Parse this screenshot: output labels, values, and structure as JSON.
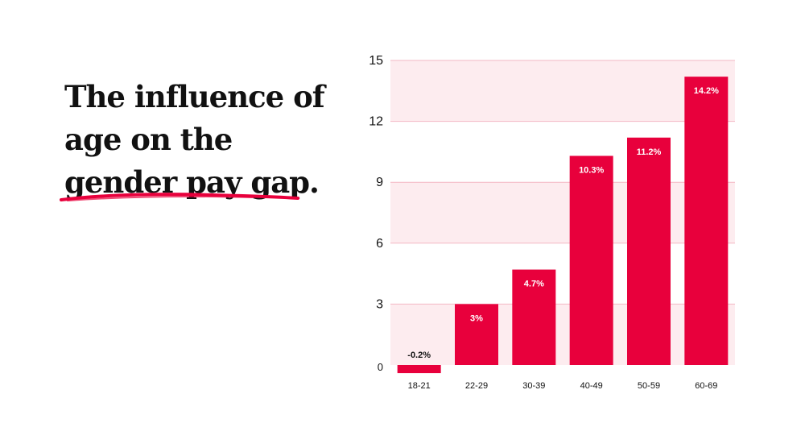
{
  "title": {
    "line1": "The influence of",
    "line2": "age on the",
    "line3": "gender pay gap."
  },
  "colors": {
    "bar": "#e8003c",
    "band": "#fdecef",
    "grid": "#f3b7c4",
    "text": "#111111"
  },
  "chart_data": {
    "type": "bar",
    "categories": [
      "18-21",
      "22-29",
      "30-39",
      "40-49",
      "50-59",
      "60-69"
    ],
    "values": [
      -0.2,
      3,
      4.7,
      10.3,
      11.2,
      14.2
    ],
    "data_labels": [
      "-0.2%",
      "3%",
      "4.7%",
      "10.3%",
      "11.2%",
      "14.2%"
    ],
    "yticks": [
      0,
      3,
      6,
      9,
      12,
      15
    ],
    "ylim": [
      0,
      15
    ],
    "grid": true
  }
}
